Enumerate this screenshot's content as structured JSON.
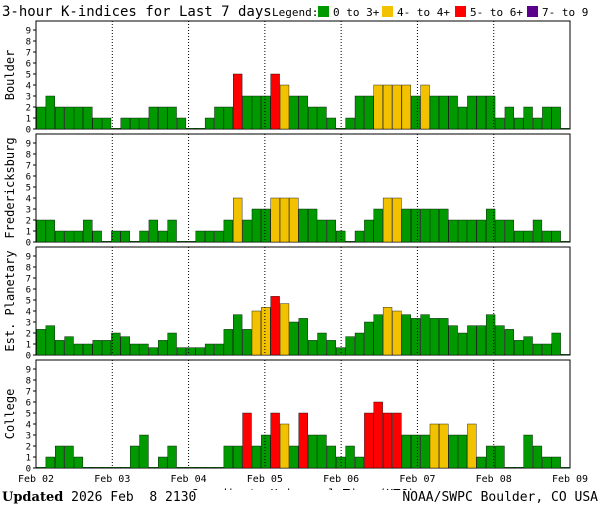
{
  "chart_data": {
    "type": "bar",
    "title": "3-hour K-indices for Last 7 days",
    "legend": {
      "label": "Legend:",
      "items": [
        {
          "label": "0 to 3+",
          "color": "#009900"
        },
        {
          "label": "4- to 4+",
          "color": "#f2c200"
        },
        {
          "label": "5- to 6+",
          "color": "#ff0000"
        },
        {
          "label": "7- to 9",
          "color": "#5a008c"
        }
      ]
    },
    "ylim": [
      0,
      9
    ],
    "yticks": [
      "0",
      "1",
      "2",
      "3",
      "4",
      "5",
      "6",
      "7",
      "8",
      "9"
    ],
    "xlabel": "Coordinate Universal Time (UTC)",
    "xticks": [
      "Feb 02",
      "Feb 03",
      "Feb 04",
      "Feb 05",
      "Feb 06",
      "Feb 07",
      "Feb 08",
      "Feb 09"
    ],
    "panels": [
      {
        "name": "Boulder",
        "values": [
          2,
          3,
          2,
          2,
          2,
          2,
          1,
          1,
          0,
          1,
          1,
          1,
          2,
          2,
          2,
          1,
          0,
          0,
          1,
          2,
          2,
          5,
          3,
          3,
          3,
          5,
          4,
          3,
          3,
          2,
          2,
          1,
          0,
          1,
          3,
          3,
          4,
          4,
          4,
          4,
          3,
          4,
          3,
          3,
          3,
          2,
          3,
          3,
          3,
          1,
          2,
          1,
          2,
          1,
          2,
          2,
          0
        ]
      },
      {
        "name": "Fredericksburg",
        "values": [
          2,
          2,
          1,
          1,
          1,
          2,
          1,
          0,
          1,
          1,
          0,
          1,
          2,
          1,
          2,
          0,
          0,
          1,
          1,
          1,
          2,
          4,
          2,
          3,
          3,
          4,
          4,
          4,
          3,
          3,
          2,
          2,
          1,
          0,
          1,
          2,
          3,
          4,
          4,
          3,
          3,
          3,
          3,
          3,
          2,
          2,
          2,
          2,
          3,
          2,
          2,
          1,
          1,
          2,
          1,
          1,
          0
        ]
      },
      {
        "name": "Est. Planetary",
        "values": [
          2.33,
          2.67,
          1.33,
          1.67,
          1,
          1,
          1.33,
          1.33,
          2,
          1.67,
          1,
          1,
          0.67,
          1.33,
          2,
          0.67,
          0.67,
          0.67,
          1,
          1,
          2.33,
          3.67,
          2.33,
          4,
          4.33,
          5.33,
          4.67,
          3,
          3.33,
          1.33,
          2,
          1.33,
          0.67,
          1.67,
          2,
          3,
          3.67,
          4.33,
          4,
          3.67,
          3.33,
          3.67,
          3.33,
          3.33,
          2.67,
          2,
          2.67,
          2.67,
          3.67,
          2.67,
          2.33,
          1.33,
          1.67,
          1,
          1,
          2,
          0
        ]
      },
      {
        "name": "College",
        "values": [
          0,
          1,
          2,
          2,
          1,
          0,
          0,
          0,
          0,
          0,
          2,
          3,
          0,
          1,
          2,
          0,
          0,
          0,
          0,
          0,
          2,
          2,
          5,
          2,
          3,
          5,
          4,
          2,
          5,
          3,
          3,
          2,
          1,
          2,
          1,
          5,
          6,
          5,
          5,
          3,
          3,
          3,
          4,
          4,
          3,
          3,
          4,
          1,
          2,
          2,
          0,
          0,
          3,
          2,
          1,
          1,
          0
        ]
      }
    ]
  },
  "footer": {
    "updated_label": "Updated",
    "updated_value": " 2026 Feb  8 2130",
    "credit": "NOAA/SWPC Boulder, CO USA"
  }
}
